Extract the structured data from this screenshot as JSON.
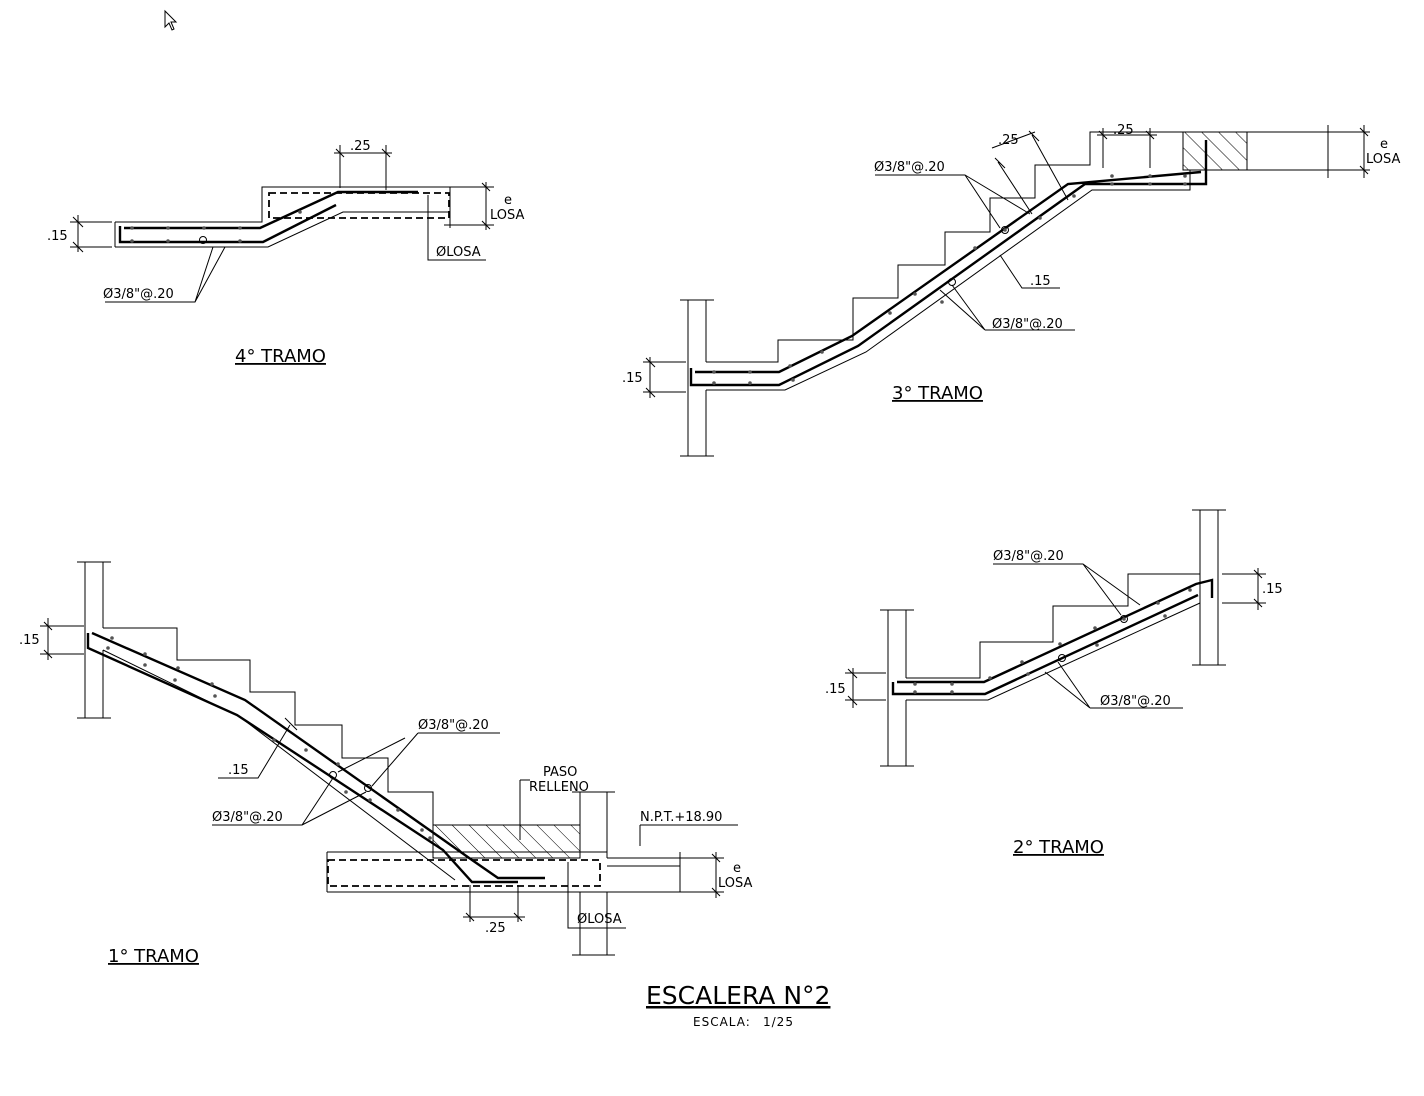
{
  "sheet": {
    "title": "ESCALERA N°2",
    "scale_label": "ESCALA:",
    "scale_value": "1/25"
  },
  "tramo4": {
    "title": "4° TRAMO",
    "dim_step": ".25",
    "dim_thickness": ".15",
    "rebar": "Ø3/8\"@.20",
    "slab_e": "e",
    "slab_losa": "LOSA",
    "slab_bar": "ØLOSA"
  },
  "tramo3": {
    "title": "3° TRAMO",
    "dim_step_a": ".25",
    "dim_step_b": ".25",
    "dim_thickness_a": ".15",
    "dim_thickness_b": ".15",
    "rebar_top": "Ø3/8\"@.20",
    "rebar_bottom": "Ø3/8\"@.20",
    "slab_e": "e",
    "slab_losa": "LOSA"
  },
  "tramo2": {
    "title": "2° TRAMO",
    "dim_thickness_left": ".15",
    "dim_thickness_right": ".15",
    "rebar_top": "Ø3/8\"@.20",
    "rebar_bottom": "Ø3/8\"@.20"
  },
  "tramo1": {
    "title": "1° TRAMO",
    "dim_thickness_top": ".15",
    "dim_thickness_mid": ".15",
    "dim_step": ".25",
    "rebar_right": "Ø3/8\"@.20",
    "rebar_left": "Ø3/8\"@.20",
    "fill_label_1": "PASO",
    "fill_label_2": "RELLENO",
    "level": "N.P.T.+18.90",
    "slab_e": "e",
    "slab_losa": "LOSA",
    "slab_bar": "ØLOSA"
  }
}
